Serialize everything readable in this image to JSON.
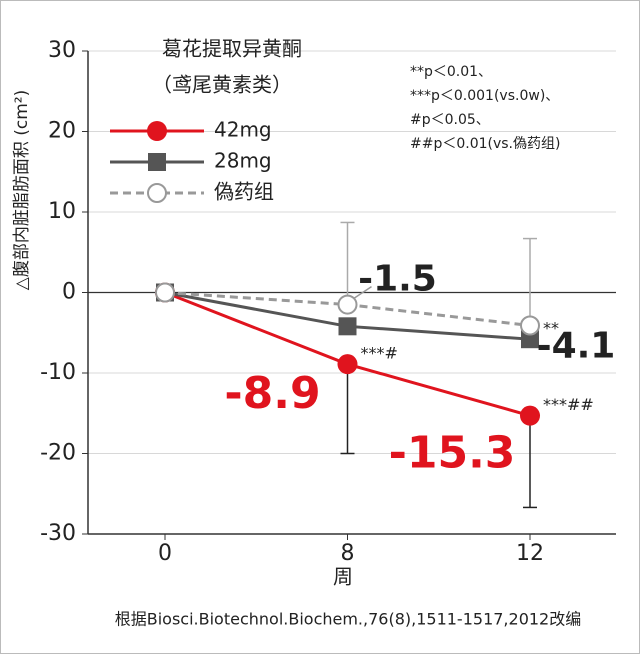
{
  "chart_data": {
    "type": "line",
    "legend_title": [
      "葛花提取异黄酮",
      "（鸢尾黄素类）"
    ],
    "notes": [
      "**p＜0.01、",
      "***p＜0.001(vs.0w)、",
      "#p＜0.05、",
      "##p＜0.01(vs.偽药组)"
    ],
    "y_label": "△腹部内脏脂肪面积 (cm²)",
    "x_label": "周",
    "source": "根据Biosci.Biotechnol.Biochem.,76(8),1511-1517,2012改编",
    "categories": [
      "0",
      "8",
      "12"
    ],
    "ylim": [
      -30,
      30
    ],
    "yticks": [
      30,
      20,
      10,
      0,
      -10,
      -20,
      -30
    ],
    "grid": true,
    "series": [
      {
        "name": "42mg",
        "color": "#e0141e",
        "marker": "circle",
        "dash": false,
        "values": [
          0,
          -8.9,
          -15.3
        ],
        "errors": [
          null,
          11.1,
          11.4
        ],
        "error_direction": "down",
        "value_labels": [
          null,
          "-8.9",
          "-15.3"
        ],
        "annotations": [
          null,
          "***#",
          "***##"
        ]
      },
      {
        "name": "28mg",
        "color": "#555555",
        "marker": "square",
        "dash": false,
        "values": [
          0,
          -4.2,
          -5.8
        ],
        "errors": [
          null,
          null,
          null
        ],
        "error_direction": "down",
        "value_labels": [
          null,
          null,
          null
        ],
        "annotations": [
          null,
          null,
          "**"
        ]
      },
      {
        "name": "偽药组",
        "color": "#999999",
        "marker": "hollow-circle",
        "dash": true,
        "values": [
          0,
          -1.5,
          -4.1
        ],
        "errors": [
          null,
          10.2,
          10.8
        ],
        "error_direction": "up",
        "value_labels": [
          null,
          "-1.5",
          "-4.1"
        ],
        "annotations": [
          null,
          null,
          null
        ]
      }
    ]
  }
}
